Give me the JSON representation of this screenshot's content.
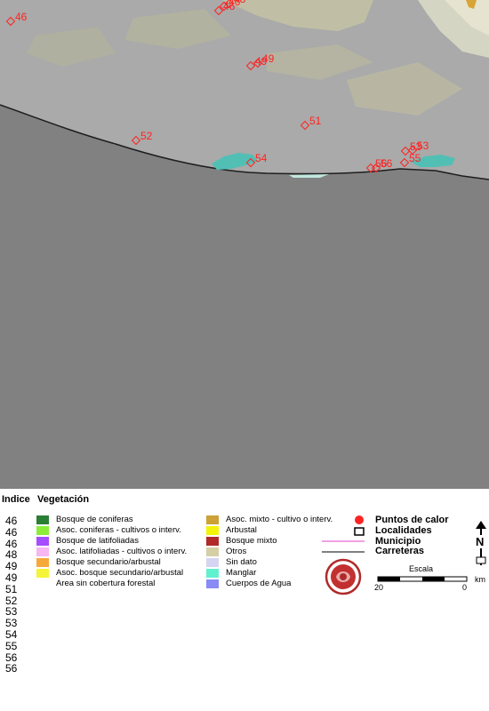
{
  "map": {
    "colors": {
      "land": "#a9aaa9",
      "sea": "#818181",
      "lagoon": "#52bfb5",
      "hotspot": "#ff2222"
    },
    "hotspots": [
      {
        "label": "46"
      },
      {
        "label": "46"
      },
      {
        "label": "46"
      },
      {
        "label": "48"
      },
      {
        "label": "49"
      },
      {
        "label": "49"
      },
      {
        "label": "51"
      },
      {
        "label": "52"
      },
      {
        "label": "53"
      },
      {
        "label": "53"
      },
      {
        "label": "54"
      },
      {
        "label": "55"
      },
      {
        "label": "56"
      },
      {
        "label": "56"
      }
    ]
  },
  "legend": {
    "index_title": "Indice",
    "index_values": [
      "46",
      "46",
      "46",
      "48",
      "49",
      "49",
      "51",
      "52",
      "53",
      "53",
      "54",
      "55",
      "56",
      "56"
    ],
    "vegetation_title": "Vegetación",
    "vegetation_left": [
      {
        "label": "Bosque de coniferas",
        "color": "#2a7f35"
      },
      {
        "label": "Asoc. coniferas - cultivos o interv.",
        "color": "#8dee3a"
      },
      {
        "label": "Bosque de latifoliadas",
        "color": "#a64dff"
      },
      {
        "label": "Asoc. latifoliadas - cultivos o interv.",
        "color": "#f7b7f0"
      },
      {
        "label": "Bosque secundario/arbustal",
        "color": "#f7a83a"
      },
      {
        "label": "Asoc. bosque secundario/arbustal",
        "color": "#f4f43a"
      },
      {
        "label": "Area sin cobertura forestal",
        "color": "#ffffff"
      }
    ],
    "vegetation_right": [
      {
        "label": "Asoc. mixto - cultivo o interv.",
        "color": "#cca136"
      },
      {
        "label": "Arbustal",
        "color": "#f4f40a"
      },
      {
        "label": "Bosque mixto",
        "color": "#b02a2a"
      },
      {
        "label": "Otros",
        "color": "#d5cfa6"
      },
      {
        "label": "Sin dato",
        "color": "#d5d5f1"
      },
      {
        "label": "Manglar",
        "color": "#61f1cf"
      },
      {
        "label": "Cuerpos de Agua",
        "color": "#8a8bf4"
      }
    ],
    "symbols": {
      "hotspots": "Puntos de calor",
      "localities": "Localidades",
      "municipality": "Municipio",
      "roads": "Carreteras"
    },
    "scale": {
      "title": "Escala",
      "left": "20",
      "right": "0",
      "unit": "km"
    },
    "north_letter": "N"
  }
}
